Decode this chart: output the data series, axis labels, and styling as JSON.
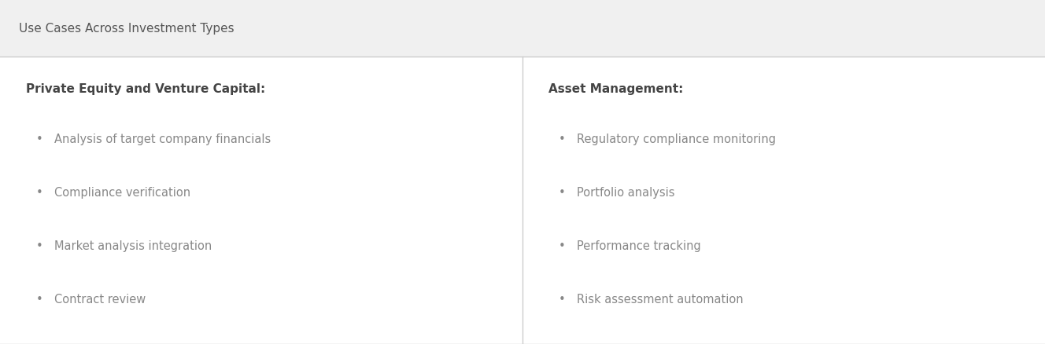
{
  "title": "Use Cases Across Investment Types",
  "title_fontsize": 11,
  "title_color": "#555555",
  "title_bg_color": "#f0f0f0",
  "content_bg_color": "#ffffff",
  "left_header": "Private Equity and Venture Capital:",
  "right_header": "Asset Management:",
  "header_fontsize": 11,
  "header_color": "#444444",
  "bullet_fontsize": 10.5,
  "bullet_color": "#888888",
  "left_bullets": [
    "Analysis of target company financials",
    "Compliance verification",
    "Market analysis integration",
    "Contract review"
  ],
  "right_bullets": [
    "Regulatory compliance monitoring",
    "Portfolio analysis",
    "Performance tracking",
    "Risk assessment automation"
  ],
  "divider_color": "#cccccc",
  "fig_bg_color": "#f0f0f0"
}
